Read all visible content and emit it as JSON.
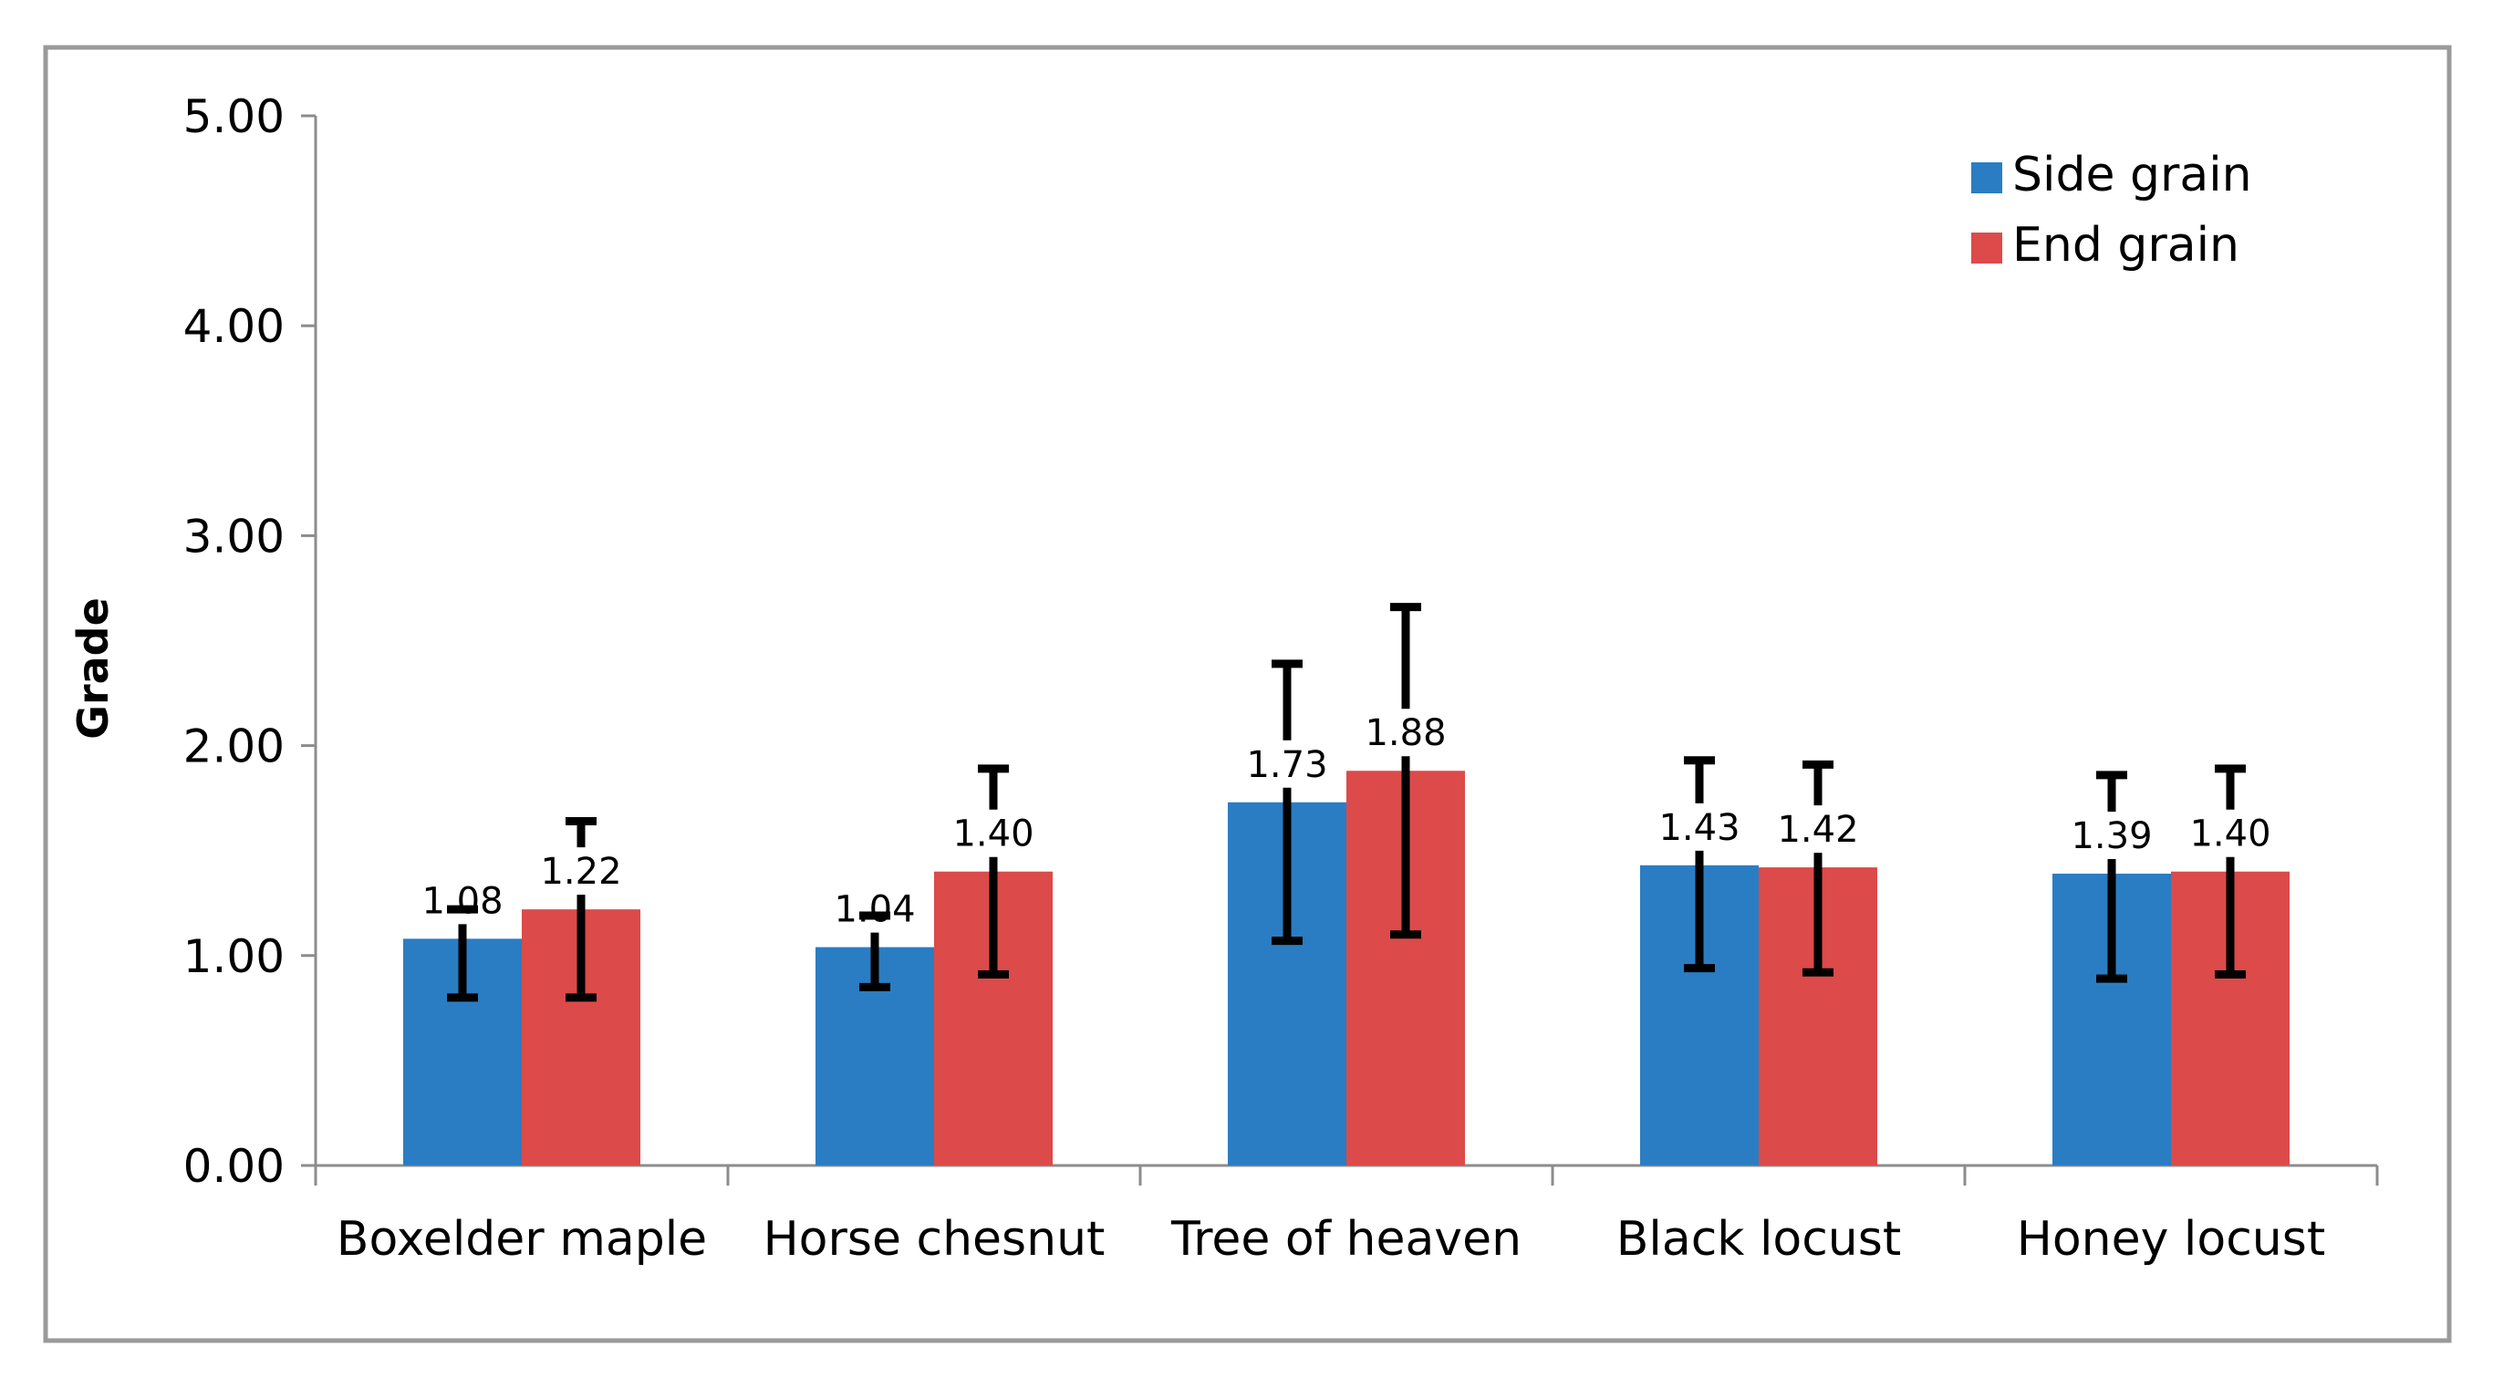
{
  "chart_data": {
    "type": "bar",
    "title": "",
    "xlabel": "",
    "ylabel": "Grade",
    "ylim": [
      0,
      5
    ],
    "yticks": [
      0,
      1,
      2,
      3,
      4,
      5
    ],
    "ytick_labels": [
      "0.00",
      "1.00",
      "2.00",
      "3.00",
      "4.00",
      "5.00"
    ],
    "categories": [
      "Boxelder maple",
      "Horse chesnut",
      "Tree of heaven",
      "Black locust",
      "Honey locust"
    ],
    "series": [
      {
        "name": "Side grain",
        "color": "#2a7dc2",
        "values": [
          1.08,
          1.04,
          1.73,
          1.43,
          1.39
        ],
        "labels": [
          "1.08",
          "1.04",
          "1.73",
          "1.43",
          "1.39"
        ],
        "error_low": [
          0.8,
          0.85,
          1.07,
          0.94,
          0.89
        ],
        "error_high": [
          1.22,
          1.19,
          2.39,
          1.93,
          1.86
        ]
      },
      {
        "name": "End grain",
        "color": "#dc4a4a",
        "values": [
          1.22,
          1.4,
          1.88,
          1.42,
          1.4
        ],
        "labels": [
          "1.22",
          "1.40",
          "1.88",
          "1.42",
          "1.40"
        ],
        "error_low": [
          0.8,
          0.91,
          1.1,
          0.92,
          0.91
        ],
        "error_high": [
          1.64,
          1.89,
          2.66,
          1.91,
          1.89
        ]
      }
    ],
    "legend_position": "top-right",
    "grid": false
  }
}
